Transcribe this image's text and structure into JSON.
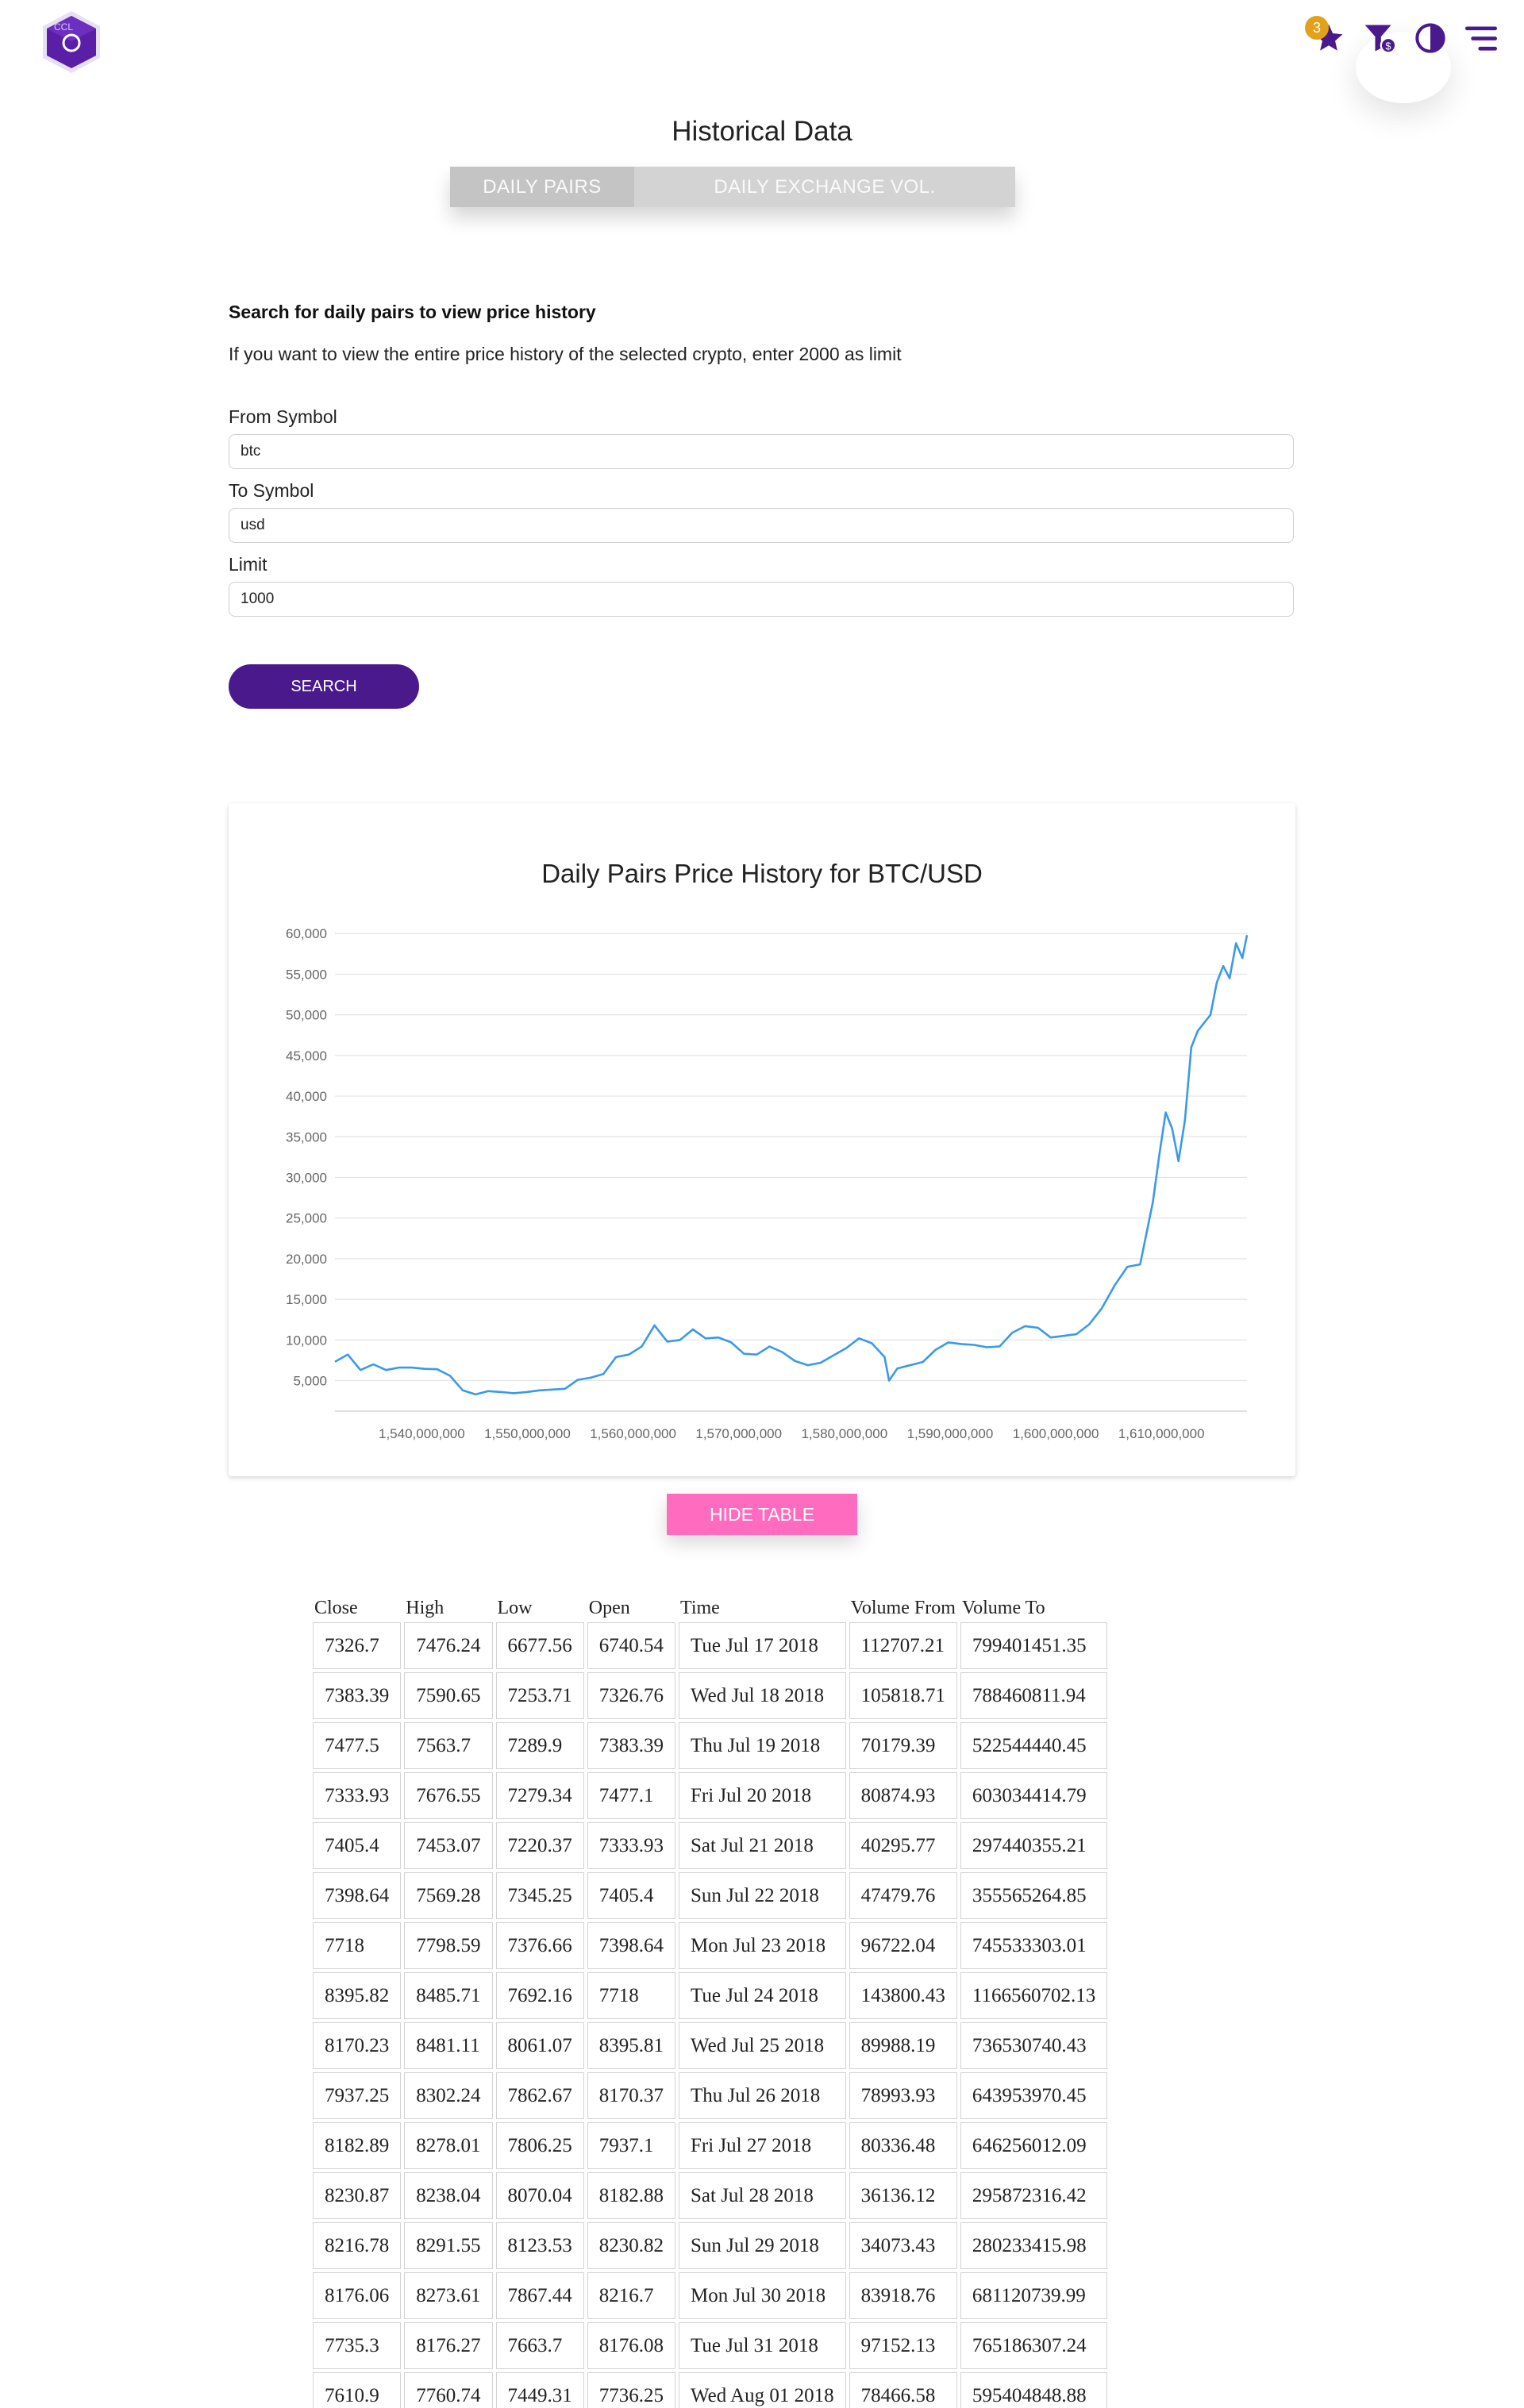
{
  "header": {
    "logo_letters": "CCL",
    "favorites_count": "3",
    "icons": [
      "hexagon-logo-icon",
      "star-icon",
      "dollar-filter-icon",
      "contrast-icon",
      "menu-icon"
    ]
  },
  "page": {
    "title": "Historical Data",
    "tabs": [
      {
        "label": "DAILY PAIRS",
        "active": true
      },
      {
        "label": "DAILY EXCHANGE VOL.",
        "active": false
      }
    ]
  },
  "form": {
    "heading": "Search for daily pairs to view price history",
    "hint": "If you want to view the entire price history of the selected crypto, enter 2000 as limit",
    "from_label": "From Symbol",
    "from_value": "btc",
    "to_label": "To Symbol",
    "to_value": "usd",
    "limit_label": "Limit",
    "limit_value": "1000",
    "search_label": "SEARCH"
  },
  "colors": {
    "accent": "#4a1a8c",
    "line": "#3a9ae8",
    "pink": "#ff6cbf",
    "badge": "#e0a21b"
  },
  "chart_data": {
    "type": "line",
    "title": "Daily Pairs Price History for BTC/USD",
    "xlabel": "",
    "ylabel": "",
    "xlim": [
      1531785600,
      1618099200
    ],
    "ylim": [
      3000,
      61000
    ],
    "grid": true,
    "legend": "none",
    "x_ticks": [
      1540000000,
      1550000000,
      1560000000,
      1570000000,
      1580000000,
      1590000000,
      1600000000,
      1610000000
    ],
    "x_tick_labels": [
      "1,540,000,000",
      "1,550,000,000",
      "1,560,000,000",
      "1,570,000,000",
      "1,580,000,000",
      "1,590,000,000",
      "1,600,000,000",
      "1,610,000,000"
    ],
    "y_ticks": [
      5000,
      10000,
      15000,
      20000,
      25000,
      30000,
      35000,
      40000,
      45000,
      50000,
      55000,
      60000
    ],
    "y_tick_labels": [
      "5,000",
      "10,000",
      "15,000",
      "20,000",
      "25,000",
      "30,000",
      "35,000",
      "40,000",
      "45,000",
      "50,000",
      "55,000",
      "60,000"
    ],
    "series": [
      {
        "x": [
          1531785600,
          1532995200,
          1534204800,
          1535414400,
          1536624000,
          1537833600,
          1539043200,
          1540252800,
          1541462400,
          1542672000,
          1543881600,
          1545091200,
          1546300800,
          1547510400,
          1548720000,
          1549929600,
          1551139200,
          1552348800,
          1553558400,
          1554768000,
          1555977600,
          1557187200,
          1558396800,
          1559606400,
          1560816000,
          1562025600,
          1563235200,
          1564444800,
          1565654400,
          1566864000,
          1568073600,
          1569283200,
          1570492800,
          1571702400,
          1572912000,
          1574121600,
          1575331200,
          1576540800,
          1577750400,
          1578960000,
          1580169600,
          1581379200,
          1582588800,
          1583798400,
          1584230400,
          1585008000,
          1586217600,
          1587427200,
          1588636800,
          1589846400,
          1591056000,
          1592265600,
          1593475200,
          1594684800,
          1595894400,
          1597104000,
          1598313600,
          1599523200,
          1600732800,
          1601942400,
          1603152000,
          1604361600,
          1605571200,
          1606780800,
          1607990400,
          1609200000,
          1609804800,
          1610409600,
          1611014400,
          1611619200,
          1612224000,
          1612828800,
          1613433600,
          1614038400,
          1614643200,
          1615248000,
          1615852800,
          1616457600,
          1617062400,
          1617667200,
          1618099200
        ],
        "values": [
          7327,
          8200,
          6300,
          7000,
          6300,
          6600,
          6600,
          6450,
          6400,
          5600,
          3800,
          3300,
          3700,
          3600,
          3450,
          3600,
          3800,
          3900,
          4000,
          5100,
          5350,
          5800,
          7900,
          8200,
          9200,
          11800,
          9800,
          10000,
          11300,
          10200,
          10300,
          9700,
          8300,
          8200,
          9200,
          8500,
          7400,
          6900,
          7200,
          8100,
          9000,
          10200,
          9600,
          7900,
          5000,
          6500,
          6900,
          7300,
          8800,
          9700,
          9500,
          9400,
          9100,
          9200,
          10900,
          11700,
          11500,
          10300,
          10500,
          10700,
          11900,
          13900,
          16700,
          19000,
          19300,
          27000,
          32800,
          38000,
          36000,
          32000,
          37000,
          46000,
          48000,
          49000,
          50000,
          54000,
          56000,
          54500,
          58800,
          57000,
          59800
        ]
      }
    ]
  },
  "table": {
    "toggle_label": "HIDE TABLE",
    "columns": [
      "Close",
      "High",
      "Low",
      "Open",
      "Time",
      "Volume From",
      "Volume To"
    ],
    "rows": [
      [
        "7326.7",
        "7476.24",
        "6677.56",
        "6740.54",
        "Tue Jul 17 2018",
        "112707.21",
        "799401451.35"
      ],
      [
        "7383.39",
        "7590.65",
        "7253.71",
        "7326.76",
        "Wed Jul 18 2018",
        "105818.71",
        "788460811.94"
      ],
      [
        "7477.5",
        "7563.7",
        "7289.9",
        "7383.39",
        "Thu Jul 19 2018",
        "70179.39",
        "522544440.45"
      ],
      [
        "7333.93",
        "7676.55",
        "7279.34",
        "7477.1",
        "Fri Jul 20 2018",
        "80874.93",
        "603034414.79"
      ],
      [
        "7405.4",
        "7453.07",
        "7220.37",
        "7333.93",
        "Sat Jul 21 2018",
        "40295.77",
        "297440355.21"
      ],
      [
        "7398.64",
        "7569.28",
        "7345.25",
        "7405.4",
        "Sun Jul 22 2018",
        "47479.76",
        "355565264.85"
      ],
      [
        "7718",
        "7798.59",
        "7376.66",
        "7398.64",
        "Mon Jul 23 2018",
        "96722.04",
        "745533303.01"
      ],
      [
        "8395.82",
        "8485.71",
        "7692.16",
        "7718",
        "Tue Jul 24 2018",
        "143800.43",
        "1166560702.13"
      ],
      [
        "8170.23",
        "8481.11",
        "8061.07",
        "8395.81",
        "Wed Jul 25 2018",
        "89988.19",
        "736530740.43"
      ],
      [
        "7937.25",
        "8302.24",
        "7862.67",
        "8170.37",
        "Thu Jul 26 2018",
        "78993.93",
        "643953970.45"
      ],
      [
        "8182.89",
        "8278.01",
        "7806.25",
        "7937.1",
        "Fri Jul 27 2018",
        "80336.48",
        "646256012.09"
      ],
      [
        "8230.87",
        "8238.04",
        "8070.04",
        "8182.88",
        "Sat Jul 28 2018",
        "36136.12",
        "295872316.42"
      ],
      [
        "8216.78",
        "8291.55",
        "8123.53",
        "8230.82",
        "Sun Jul 29 2018",
        "34073.43",
        "280233415.98"
      ],
      [
        "8176.06",
        "8273.61",
        "7867.44",
        "8216.7",
        "Mon Jul 30 2018",
        "83918.76",
        "681120739.99"
      ],
      [
        "7735.3",
        "8176.27",
        "7663.7",
        "8176.08",
        "Tue Jul 31 2018",
        "97152.13",
        "765186307.24"
      ],
      [
        "7610.9",
        "7760.74",
        "7449.31",
        "7736.25",
        "Wed Aug 01 2018",
        "78466.58",
        "595404848.88"
      ]
    ]
  }
}
